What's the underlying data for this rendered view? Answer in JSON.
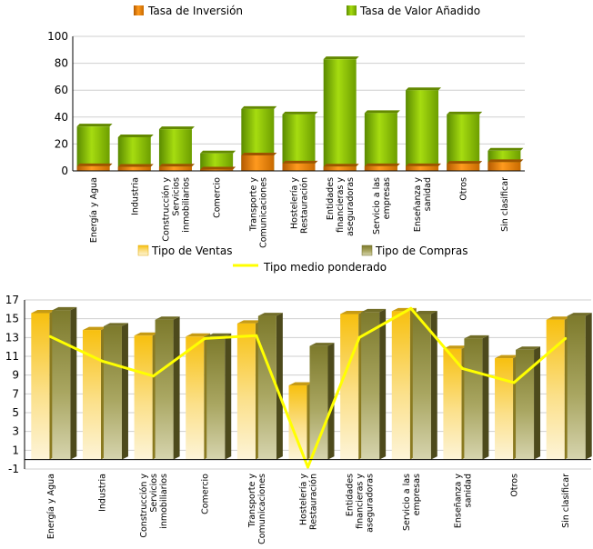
{
  "chart_data": [
    {
      "type": "bar",
      "title": "",
      "xlabel": "",
      "ylabel": "",
      "ylim": [
        0,
        100
      ],
      "yticks": [
        0,
        20,
        40,
        60,
        80,
        100
      ],
      "grid": true,
      "legend_position": "top",
      "categories": [
        [
          "Energía y Agua"
        ],
        [
          "Industria"
        ],
        [
          "Construcción y",
          "Servicios",
          "inmobiliarios"
        ],
        [
          "Comercio"
        ],
        [
          "Transporte y",
          "Comunicaciones"
        ],
        [
          "Hostelería y",
          "Restauración"
        ],
        [
          "Entidades",
          "financieras y",
          "aseguradoras"
        ],
        [
          "Servicio a las",
          "empresas"
        ],
        [
          "Enseñanza y",
          "sanidad"
        ],
        [
          "Otros"
        ],
        [
          "Sin clasificar"
        ]
      ],
      "series": [
        {
          "name": "Tasa de Inversión",
          "color": "#e07800",
          "values": [
            3.5,
            3,
            3.2,
            1,
            11.5,
            5.5,
            3.2,
            3.5,
            3.5,
            5.3,
            6.5
          ]
        },
        {
          "name": "Tasa de Valor Añadido",
          "color": "#8ec400",
          "values": [
            33,
            25,
            31,
            13,
            46,
            42,
            83,
            43,
            60,
            42,
            15
          ]
        }
      ]
    },
    {
      "type": "bar",
      "title": "",
      "xlabel": "",
      "ylabel": "",
      "ylim": [
        -1,
        17
      ],
      "yticks": [
        -1,
        1,
        3,
        5,
        7,
        9,
        11,
        13,
        15,
        17
      ],
      "grid": true,
      "legend_position": "top",
      "categories": [
        [
          "Energía y Agua"
        ],
        [
          "Industria"
        ],
        [
          "Construcción y",
          "Servicios",
          "inmobiliarios"
        ],
        [
          "Comercio"
        ],
        [
          "Transporte y",
          "Comunicaciones"
        ],
        [
          "Hostelería y",
          "Restauración"
        ],
        [
          "Entidades",
          "financieras y",
          "aseguradoras"
        ],
        [
          "Servicio a las",
          "empresas"
        ],
        [
          "Enseñanza y",
          "sanidad"
        ],
        [
          "Otros"
        ],
        [
          "Sin clasificar"
        ]
      ],
      "series": [
        {
          "name": "Tipo de Ventas",
          "color": "#f7c21a",
          "values": [
            15.6,
            13.8,
            13.2,
            13.1,
            14.5,
            7.9,
            15.5,
            15.8,
            11.8,
            10.8,
            14.9
          ]
        },
        {
          "name": "Tipo de Compras",
          "color": "#8e8a33",
          "values": [
            15.9,
            14.2,
            14.9,
            13.1,
            15.3,
            12.1,
            15.7,
            15.5,
            12.9,
            11.7,
            15.3
          ]
        },
        {
          "name": "Tipo medio ponderado",
          "type": "line",
          "color": "#ffff00",
          "values": [
            13.1,
            10.5,
            8.9,
            12.9,
            13.2,
            -0.8,
            13.0,
            16.1,
            9.7,
            8.2,
            12.9
          ]
        }
      ]
    }
  ]
}
